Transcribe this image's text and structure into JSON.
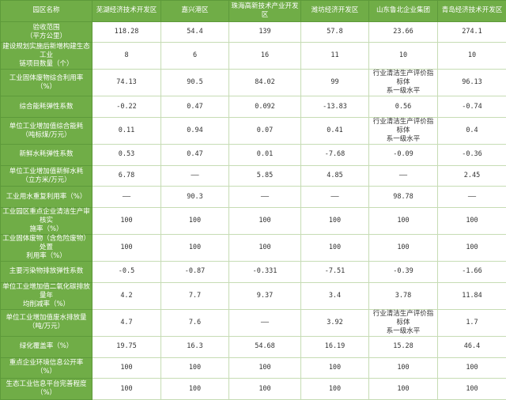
{
  "colors": {
    "header_bg": "#70ad47",
    "border": "#c6dcb4"
  },
  "table": {
    "headers": [
      "园区名称",
      "芜湖经济技术开发区",
      "嘉兴港区",
      "珠海高新技术产业开发区",
      "潍坊经济开发区",
      "山东鲁北企业集团",
      "青岛经济技术开发区"
    ],
    "rows": [
      {
        "label": "验收范围\n（平方公里）",
        "values": [
          "118.28",
          "54.4",
          "139",
          "57.8",
          "23.66",
          "274.1"
        ]
      },
      {
        "label": "建设规划实施后新增构建生态工业\n链项目数量（个）",
        "values": [
          "8",
          "6",
          "16",
          "11",
          "10",
          "10"
        ]
      },
      {
        "label": "工业固体废物综合利用率（%）",
        "values": [
          "74.13",
          "90.5",
          "84.02",
          "99",
          "行业清洁生产评价指标体\n系一级水平",
          "96.13"
        ]
      },
      {
        "label": "综合能耗弹性系数",
        "values": [
          "-0.22",
          "0.47",
          "0.092",
          "-13.83",
          "0.56",
          "-0.74"
        ]
      },
      {
        "label": "单位工业增加值综合能耗\n（吨标煤/万元）",
        "values": [
          "0.11",
          "0.94",
          "0.07",
          "0.41",
          "行业清洁生产评价指标体\n系一级水平",
          "0.4"
        ]
      },
      {
        "label": "新鲜水耗弹性系数",
        "values": [
          "0.53",
          "0.47",
          "0.01",
          "-7.68",
          "-0.09",
          "-0.36"
        ]
      },
      {
        "label": "单位工业增加值新鲜水耗\n（立方米/万元）",
        "values": [
          "6.78",
          "——",
          "5.85",
          "4.85",
          "——",
          "2.45"
        ]
      },
      {
        "label": "工业用水重复利用率（%）",
        "values": [
          "——",
          "90.3",
          "——",
          "——",
          "98.78",
          "——"
        ]
      },
      {
        "label": "工业园区重点企业清洁生产审核实\n施率（%）",
        "values": [
          "100",
          "100",
          "100",
          "100",
          "100",
          "100"
        ]
      },
      {
        "label": "工业固体废物（含危险废物）处置\n利用率（%）",
        "values": [
          "100",
          "100",
          "100",
          "100",
          "100",
          "100"
        ]
      },
      {
        "label": "主要污染物排放弹性系数",
        "values": [
          "-0.5",
          "-0.87",
          "-0.331",
          "-7.51",
          "-0.39",
          "-1.66"
        ]
      },
      {
        "label": "单位工业增加值二氧化碳排放量年\n均削减率（%）",
        "values": [
          "4.2",
          "7.7",
          "9.37",
          "3.4",
          "3.78",
          "11.84"
        ]
      },
      {
        "label": "单位工业增加值废水排放量\n（吨/万元）",
        "values": [
          "4.7",
          "7.6",
          "——",
          "3.92",
          "行业清洁生产评价指标体\n系一级水平",
          "1.7"
        ]
      },
      {
        "label": "绿化覆盖率（%）",
        "values": [
          "19.75",
          "16.3",
          "54.68",
          "16.19",
          "15.28",
          "46.4"
        ]
      },
      {
        "label": "重点企业环境信息公开率（%）",
        "values": [
          "100",
          "100",
          "100",
          "100",
          "100",
          "100"
        ]
      },
      {
        "label": "生态工业信息平台完善程度（%）",
        "values": [
          "100",
          "100",
          "100",
          "100",
          "100",
          "100"
        ]
      }
    ]
  }
}
